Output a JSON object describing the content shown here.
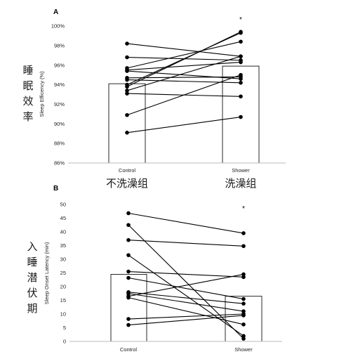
{
  "chart_data": [
    {
      "panel_label": "A",
      "type": "bar",
      "bar_values": [
        94.1,
        95.9
      ],
      "categories": [
        "Control",
        "Shower"
      ],
      "category_cn": [
        "不洗澡组",
        "洗澡组"
      ],
      "ylabel": "Sleep Efficency (%)",
      "ylabel_cn": "睡眠效率",
      "ylim": [
        86,
        100
      ],
      "yticks": [
        "86%",
        "88%",
        "90%",
        "92%",
        "94%",
        "96%",
        "98%",
        "100%"
      ],
      "significance": "*",
      "paired_lines": [
        [
          98.2,
          96.9
        ],
        [
          96.8,
          96.5
        ],
        [
          95.7,
          98.4
        ],
        [
          95.5,
          96.3
        ],
        [
          95.4,
          94.6
        ],
        [
          94.7,
          94.8
        ],
        [
          94.5,
          94.2
        ],
        [
          94.0,
          99.3
        ],
        [
          93.8,
          99.4
        ],
        [
          93.4,
          96.9
        ],
        [
          93.1,
          92.8
        ],
        [
          90.9,
          95.0
        ],
        [
          89.1,
          90.7
        ]
      ]
    },
    {
      "panel_label": "B",
      "type": "bar",
      "bar_values": [
        24.5,
        16.5
      ],
      "categories": [
        "Control",
        "Shower"
      ],
      "ylabel": "Sleep Onset Latency (min)",
      "ylabel_cn": "入睡潜伏期",
      "ylim": [
        0,
        50
      ],
      "yticks": [
        "0",
        "5",
        "10",
        "15",
        "20",
        "25",
        "30",
        "35",
        "40",
        "45",
        "50"
      ],
      "significance": "*",
      "paired_lines": [
        [
          46.8,
          39.5
        ],
        [
          42.5,
          1.0
        ],
        [
          37.0,
          34.8
        ],
        [
          31.5,
          2.0
        ],
        [
          25.5,
          23.5
        ],
        [
          23.2,
          15.5
        ],
        [
          18.0,
          13.8
        ],
        [
          17.5,
          11.0
        ],
        [
          16.5,
          24.5
        ],
        [
          16.0,
          6.2
        ],
        [
          8.2,
          10.0
        ],
        [
          6.0,
          9.5
        ]
      ]
    }
  ]
}
